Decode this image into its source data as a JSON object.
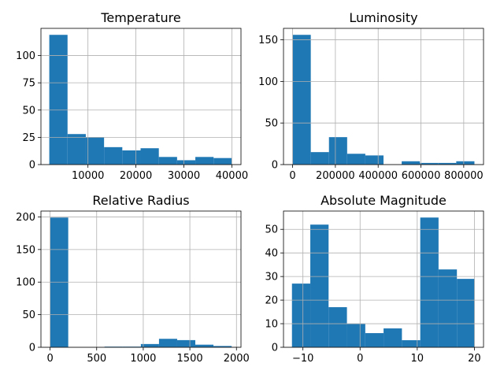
{
  "chart_data": [
    {
      "type": "bar",
      "title": "Temperature",
      "xlabel": "",
      "ylabel": "",
      "grid": true,
      "color": "#1f77b4",
      "xlim": [
        200,
        41900
      ],
      "ylim": [
        0,
        124.95
      ],
      "bin_edges": [
        1939,
        5745.1,
        9551.2,
        13357.3,
        17163.4,
        20969.5,
        24775.6,
        28581.7,
        32387.8,
        36193.9,
        40000
      ],
      "values": [
        119,
        28,
        25,
        16,
        13,
        15,
        7,
        4,
        7,
        6
      ],
      "xticks": [
        10000,
        20000,
        30000,
        40000
      ],
      "xtick_labels": [
        "10000",
        "20000",
        "30000",
        "40000"
      ],
      "yticks": [
        0,
        25,
        50,
        75,
        100
      ],
      "ytick_labels": [
        "0",
        "25",
        "50",
        "75",
        "100"
      ]
    },
    {
      "type": "bar",
      "title": "Luminosity",
      "xlabel": "",
      "ylabel": "",
      "grid": true,
      "color": "#1f77b4",
      "xlim": [
        -42500,
        892500
      ],
      "ylim": [
        0,
        163.8
      ],
      "bin_edges": [
        0,
        85000,
        170000,
        255000,
        340000,
        425000,
        510000,
        595000,
        680000,
        765000,
        850000
      ],
      "values": [
        156,
        15,
        33,
        13,
        11,
        0,
        4,
        2,
        2,
        4
      ],
      "xticks": [
        0,
        200000,
        400000,
        600000,
        800000
      ],
      "xtick_labels": [
        "0",
        "200000",
        "400000",
        "600000",
        "800000"
      ],
      "yticks": [
        0,
        50,
        100,
        150
      ],
      "ytick_labels": [
        "0",
        "50",
        "100",
        "150"
      ]
    },
    {
      "type": "bar",
      "title": "Relative Radius",
      "xlabel": "",
      "ylabel": "",
      "grid": true,
      "color": "#1f77b4",
      "xlim": [
        -97.9,
        2048.5
      ],
      "ylim": [
        0,
        209.0
      ],
      "bin_edges": [
        0,
        194.8,
        389.6,
        584.4,
        779.2,
        974.1,
        1168.9,
        1363.7,
        1558.5,
        1753.3,
        1948.5
      ],
      "values": [
        199,
        0,
        0,
        1,
        1,
        5,
        13,
        11,
        4,
        2
      ],
      "xticks": [
        0,
        500,
        1000,
        1500,
        2000
      ],
      "xtick_labels": [
        "0",
        "500",
        "1000",
        "1500",
        "2000"
      ],
      "yticks": [
        0,
        50,
        100,
        150,
        200
      ],
      "ytick_labels": [
        "0",
        "50",
        "100",
        "150",
        "200"
      ]
    },
    {
      "type": "bar",
      "title": "Absolute Magnitude",
      "xlabel": "",
      "ylabel": "",
      "grid": true,
      "color": "#1f77b4",
      "xlim": [
        -13.4,
        21.6
      ],
      "ylim": [
        0,
        57.75
      ],
      "bin_edges": [
        -11.92,
        -8.71,
        -5.51,
        -2.3,
        0.91,
        4.11,
        7.32,
        10.53,
        13.73,
        16.94,
        20.06
      ],
      "values": [
        27,
        52,
        17,
        10,
        6,
        8,
        3,
        55,
        33,
        29
      ],
      "xticks": [
        -10,
        0,
        10,
        20
      ],
      "xtick_labels": [
        "−10",
        "0",
        "10",
        "20"
      ],
      "yticks": [
        0,
        10,
        20,
        30,
        40,
        50
      ],
      "ytick_labels": [
        "0",
        "10",
        "20",
        "30",
        "40",
        "50"
      ]
    }
  ]
}
